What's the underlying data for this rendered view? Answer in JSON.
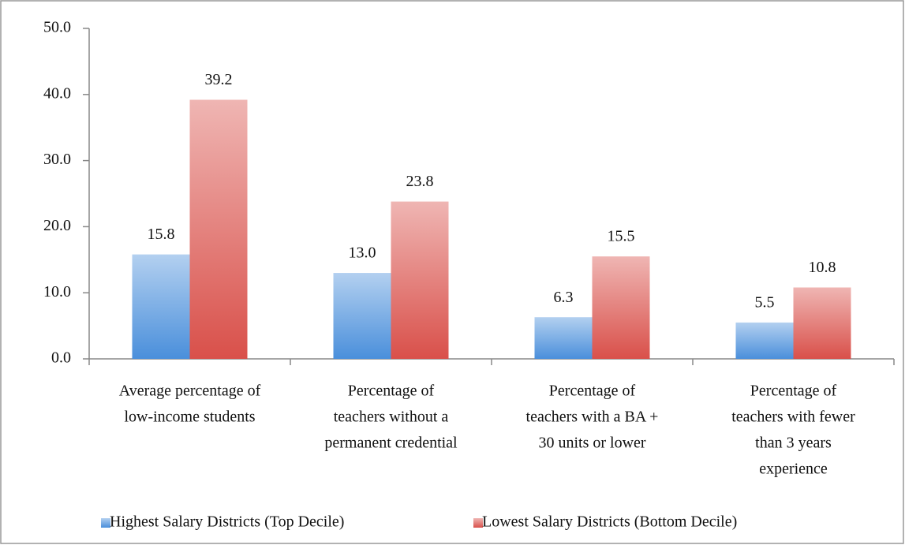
{
  "chart_data": {
    "type": "bar",
    "categories": [
      [
        "Average percentage of",
        "low-income students"
      ],
      [
        "Percentage of",
        "teachers without a",
        "permanent credential"
      ],
      [
        "Percentage of",
        "teachers with a BA +",
        "30 units or lower"
      ],
      [
        "Percentage of",
        "teachers with fewer",
        "than 3 years",
        "experience"
      ]
    ],
    "series": [
      {
        "name": "Highest Salary Districts (Top Decile)",
        "color": "#4a8fdb",
        "values": [
          15.8,
          13.0,
          6.3,
          5.5
        ],
        "value_labels": [
          "15.8",
          "13.0",
          "6.3",
          "5.5"
        ]
      },
      {
        "name": "Lowest Salary Districts (Bottom Decile)",
        "color": "#d9504a",
        "values": [
          39.2,
          23.8,
          15.5,
          10.8
        ],
        "value_labels": [
          "39.2",
          "23.8",
          "15.5",
          "10.8"
        ]
      }
    ],
    "ylim": [
      0,
      50
    ],
    "yticks": [
      {
        "value": 0,
        "label": "0.0"
      },
      {
        "value": 10,
        "label": "10.0"
      },
      {
        "value": 20,
        "label": "20.0"
      },
      {
        "value": 30,
        "label": "30.0"
      },
      {
        "value": 40,
        "label": "40.0"
      },
      {
        "value": 50,
        "label": "50.0"
      }
    ],
    "legend": "bottom",
    "grid": false
  }
}
